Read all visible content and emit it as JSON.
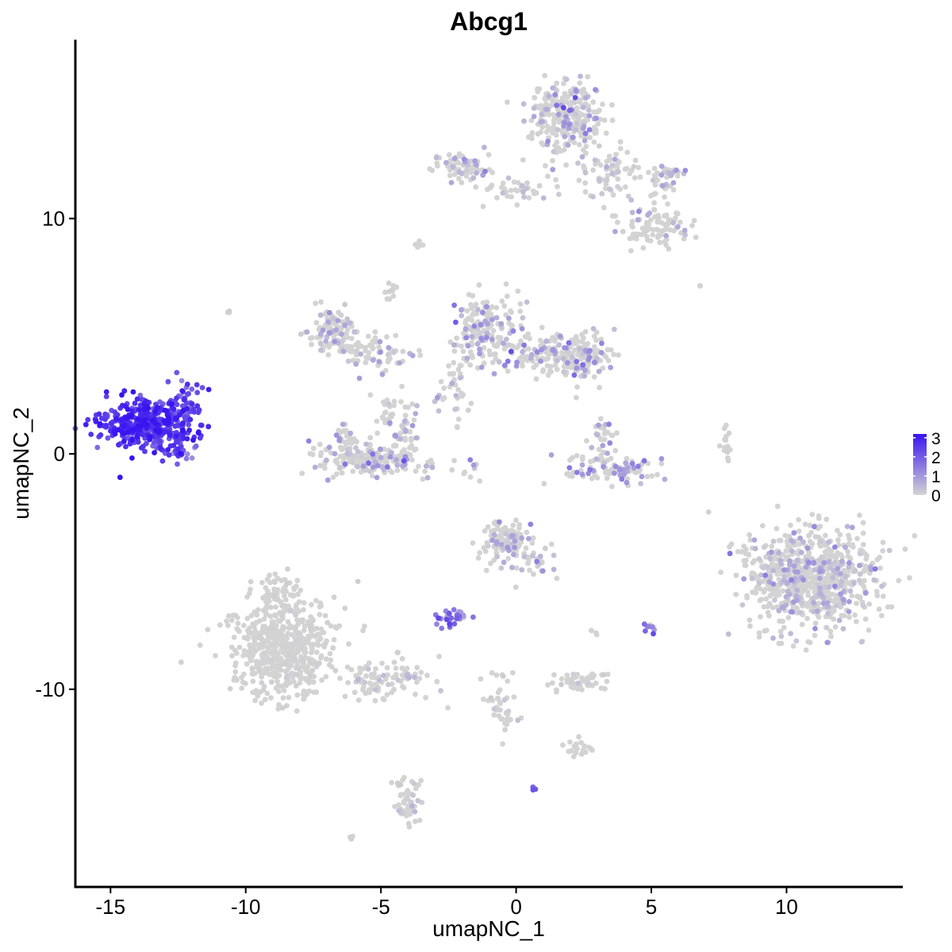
{
  "chart_data": {
    "type": "scatter",
    "title": "Abcg1",
    "xlabel": "umapNC_1",
    "ylabel": "umapNC_2",
    "xlim": [
      -16.3,
      14.3
    ],
    "ylim": [
      -18.4,
      17.6
    ],
    "x_ticks": [
      {
        "value": -15,
        "label": "-15"
      },
      {
        "value": -10,
        "label": "-10"
      },
      {
        "value": -5,
        "label": "-5"
      },
      {
        "value": 0,
        "label": "0"
      },
      {
        "value": 5,
        "label": "5"
      },
      {
        "value": 10,
        "label": "10"
      }
    ],
    "y_ticks": [
      {
        "value": -10,
        "label": "-10"
      },
      {
        "value": 0,
        "label": "0"
      },
      {
        "value": 10,
        "label": "10"
      }
    ],
    "grid": false,
    "legend": {
      "position": "right",
      "type": "colorbar",
      "range": [
        0,
        3.2
      ],
      "ticks": [
        {
          "value": 0,
          "label": "0"
        },
        {
          "value": 1,
          "label": "1"
        },
        {
          "value": 2,
          "label": "2"
        },
        {
          "value": 3,
          "label": "3"
        }
      ]
    },
    "color_low": "#d3d3d3",
    "color_high": "#3a14f0",
    "clusters": [
      {
        "cx": -13.6,
        "cy": 1.2,
        "sx": 0.9,
        "sy": 0.55,
        "n": 420,
        "expr_mean": 2.6,
        "expr_sd": 0.45
      },
      {
        "cx": -12.3,
        "cy": 2.2,
        "sx": 0.3,
        "sy": 0.4,
        "n": 40,
        "expr_mean": 2.0,
        "expr_sd": 0.5
      },
      {
        "cx": -12.5,
        "cy": 0.0,
        "sx": 0.25,
        "sy": 0.15,
        "n": 15,
        "expr_mean": 1.8,
        "expr_sd": 0.5
      },
      {
        "cx": -8.6,
        "cy": -8.4,
        "sx": 0.95,
        "sy": 1.0,
        "n": 520,
        "expr_mean": 0.0,
        "expr_sd": 0.05
      },
      {
        "cx": -8.8,
        "cy": -6.2,
        "sx": 0.4,
        "sy": 0.7,
        "n": 80,
        "expr_mean": 0.0,
        "expr_sd": 0.05
      },
      {
        "cx": -4.8,
        "cy": -9.6,
        "sx": 0.9,
        "sy": 0.4,
        "n": 90,
        "expr_mean": 0.1,
        "expr_sd": 0.2
      },
      {
        "cx": -4.0,
        "cy": -14.8,
        "sx": 0.25,
        "sy": 0.55,
        "n": 50,
        "expr_mean": 0.1,
        "expr_sd": 0.2
      },
      {
        "cx": -2.0,
        "cy": 12.2,
        "sx": 0.5,
        "sy": 0.3,
        "n": 70,
        "expr_mean": 0.4,
        "expr_sd": 0.5
      },
      {
        "cx": 0.1,
        "cy": 11.2,
        "sx": 0.9,
        "sy": 0.25,
        "n": 40,
        "expr_mean": 0.2,
        "expr_sd": 0.4
      },
      {
        "cx": 1.8,
        "cy": 14.4,
        "sx": 0.7,
        "sy": 0.75,
        "n": 260,
        "expr_mean": 0.5,
        "expr_sd": 0.6
      },
      {
        "cx": 3.3,
        "cy": 12.0,
        "sx": 0.55,
        "sy": 0.5,
        "n": 70,
        "expr_mean": 0.2,
        "expr_sd": 0.4
      },
      {
        "cx": 5.4,
        "cy": 11.7,
        "sx": 0.4,
        "sy": 0.35,
        "n": 40,
        "expr_mean": 0.3,
        "expr_sd": 0.5
      },
      {
        "cx": 5.2,
        "cy": 9.6,
        "sx": 0.7,
        "sy": 0.45,
        "n": 90,
        "expr_mean": 0.3,
        "expr_sd": 0.5
      },
      {
        "cx": -6.8,
        "cy": 5.2,
        "sx": 0.45,
        "sy": 0.45,
        "n": 110,
        "expr_mean": 0.3,
        "expr_sd": 0.5
      },
      {
        "cx": -5.3,
        "cy": 4.2,
        "sx": 0.8,
        "sy": 0.45,
        "n": 70,
        "expr_mean": 0.3,
        "expr_sd": 0.5
      },
      {
        "cx": -4.8,
        "cy": 1.8,
        "sx": 0.25,
        "sy": 0.5,
        "n": 25,
        "expr_mean": 0.3,
        "expr_sd": 0.5
      },
      {
        "cx": -5.4,
        "cy": -0.3,
        "sx": 1.05,
        "sy": 0.35,
        "n": 190,
        "expr_mean": 0.4,
        "expr_sd": 0.6
      },
      {
        "cx": -6.3,
        "cy": 0.6,
        "sx": 0.25,
        "sy": 0.4,
        "n": 30,
        "expr_mean": 0.4,
        "expr_sd": 0.6
      },
      {
        "cx": -4.1,
        "cy": 1.0,
        "sx": 0.3,
        "sy": 0.7,
        "n": 40,
        "expr_mean": 0.4,
        "expr_sd": 0.6
      },
      {
        "cx": -1.1,
        "cy": 5.3,
        "sx": 0.55,
        "sy": 0.75,
        "n": 170,
        "expr_mean": 0.6,
        "expr_sd": 0.6
      },
      {
        "cx": 1.4,
        "cy": 4.3,
        "sx": 1.1,
        "sy": 0.45,
        "n": 170,
        "expr_mean": 0.6,
        "expr_sd": 0.6
      },
      {
        "cx": 2.4,
        "cy": 4.0,
        "sx": 0.45,
        "sy": 0.45,
        "n": 80,
        "expr_mean": 0.8,
        "expr_sd": 0.6
      },
      {
        "cx": -2.1,
        "cy": 3.0,
        "sx": 0.3,
        "sy": 0.8,
        "n": 35,
        "expr_mean": 0.2,
        "expr_sd": 0.4
      },
      {
        "cx": 3.6,
        "cy": -0.7,
        "sx": 0.85,
        "sy": 0.3,
        "n": 100,
        "expr_mean": 0.6,
        "expr_sd": 0.6
      },
      {
        "cx": 3.2,
        "cy": 0.6,
        "sx": 0.25,
        "sy": 0.5,
        "n": 35,
        "expr_mean": 0.6,
        "expr_sd": 0.6
      },
      {
        "cx": -0.4,
        "cy": -3.7,
        "sx": 0.45,
        "sy": 0.55,
        "n": 110,
        "expr_mean": 0.3,
        "expr_sd": 0.5
      },
      {
        "cx": 0.9,
        "cy": -4.6,
        "sx": 0.4,
        "sy": 0.35,
        "n": 25,
        "expr_mean": 0.3,
        "expr_sd": 0.5
      },
      {
        "cx": -2.4,
        "cy": -6.9,
        "sx": 0.3,
        "sy": 0.2,
        "n": 30,
        "expr_mean": 1.5,
        "expr_sd": 0.6
      },
      {
        "cx": 2.4,
        "cy": -9.6,
        "sx": 0.55,
        "sy": 0.2,
        "n": 50,
        "expr_mean": 0.1,
        "expr_sd": 0.2
      },
      {
        "cx": -0.5,
        "cy": -10.7,
        "sx": 0.3,
        "sy": 0.8,
        "n": 40,
        "expr_mean": 0.1,
        "expr_sd": 0.2
      },
      {
        "cx": 2.2,
        "cy": -12.5,
        "sx": 0.35,
        "sy": 0.2,
        "n": 20,
        "expr_mean": 0.0,
        "expr_sd": 0.05
      },
      {
        "cx": 10.8,
        "cy": -5.3,
        "sx": 1.2,
        "sy": 1.05,
        "n": 780,
        "expr_mean": 0.25,
        "expr_sd": 0.5
      },
      {
        "cx": 7.8,
        "cy": 0.4,
        "sx": 0.1,
        "sy": 0.5,
        "n": 15,
        "expr_mean": 0.0,
        "expr_sd": 0.05
      },
      {
        "cx": 5.0,
        "cy": -7.4,
        "sx": 0.15,
        "sy": 0.15,
        "n": 8,
        "expr_mean": 1.5,
        "expr_sd": 0.6
      },
      {
        "cx": -3.6,
        "cy": 8.9,
        "sx": 0.15,
        "sy": 0.1,
        "n": 6,
        "expr_mean": 0.0,
        "expr_sd": 0.05
      },
      {
        "cx": -4.6,
        "cy": 6.8,
        "sx": 0.15,
        "sy": 0.3,
        "n": 10,
        "expr_mean": 0.0,
        "expr_sd": 0.05
      },
      {
        "cx": -2.9,
        "cy": 2.2,
        "sx": 0.12,
        "sy": 0.25,
        "n": 6,
        "expr_mean": 0.3,
        "expr_sd": 0.5
      },
      {
        "cx": -1.8,
        "cy": -0.6,
        "sx": 0.25,
        "sy": 0.25,
        "n": 10,
        "expr_mean": 0.5,
        "expr_sd": 0.6
      },
      {
        "cx": -10.6,
        "cy": 6.0,
        "sx": 0.05,
        "sy": 0.05,
        "n": 3,
        "expr_mean": 0.0,
        "expr_sd": 0.05
      },
      {
        "cx": 6.8,
        "cy": 7.1,
        "sx": 0.05,
        "sy": 0.05,
        "n": 2,
        "expr_mean": 0.0,
        "expr_sd": 0.05
      },
      {
        "cx": 0.6,
        "cy": -14.2,
        "sx": 0.05,
        "sy": 0.05,
        "n": 3,
        "expr_mean": 1.5,
        "expr_sd": 0.5
      },
      {
        "cx": -6.1,
        "cy": -16.3,
        "sx": 0.08,
        "sy": 0.08,
        "n": 4,
        "expr_mean": 0.0,
        "expr_sd": 0.05
      },
      {
        "cx": 2.9,
        "cy": -7.6,
        "sx": 0.05,
        "sy": 0.05,
        "n": 3,
        "expr_mean": 0.0,
        "expr_sd": 0.05
      }
    ]
  }
}
